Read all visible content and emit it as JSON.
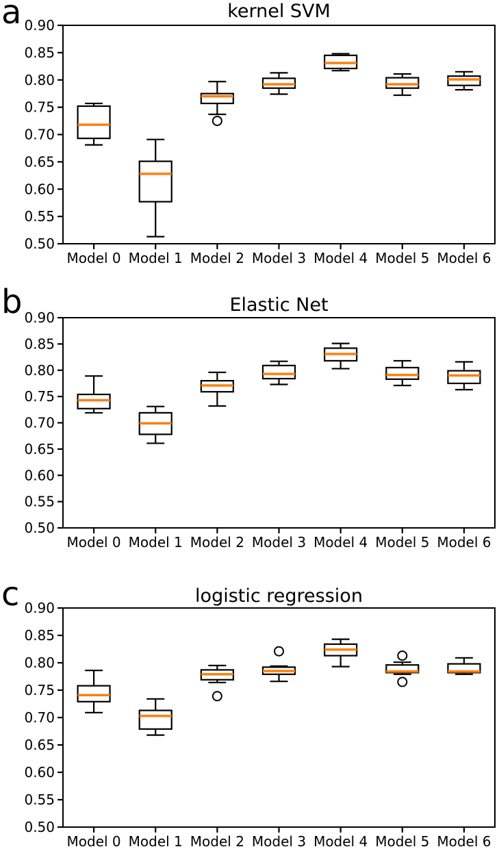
{
  "figure": {
    "panels": [
      {
        "letter": "a",
        "title": "kernel SVM"
      },
      {
        "letter": "b",
        "title": "Elastic Net"
      },
      {
        "letter": "c",
        "title": "logistic regression"
      }
    ]
  },
  "colors": {
    "median": "#ff7f0e",
    "box_stroke": "#000000",
    "background": "#ffffff"
  },
  "chart_data": [
    {
      "type": "boxplot",
      "panel_label": "a",
      "title": "kernel SVM",
      "categories": [
        "Model 0",
        "Model 1",
        "Model 2",
        "Model 3",
        "Model 4",
        "Model 5",
        "Model 6"
      ],
      "ylim": [
        0.5,
        0.9
      ],
      "yticks": [
        0.5,
        0.55,
        0.6,
        0.65,
        0.7,
        0.75,
        0.8,
        0.85,
        0.9
      ],
      "grid": false,
      "boxes": [
        {
          "whislo": 0.681,
          "q1": 0.693,
          "med": 0.718,
          "q3": 0.752,
          "whishi": 0.757,
          "fliers": []
        },
        {
          "whislo": 0.513,
          "q1": 0.577,
          "med": 0.628,
          "q3": 0.651,
          "whishi": 0.691,
          "fliers": []
        },
        {
          "whislo": 0.737,
          "q1": 0.757,
          "med": 0.77,
          "q3": 0.775,
          "whishi": 0.797,
          "fliers": [
            0.725
          ]
        },
        {
          "whislo": 0.774,
          "q1": 0.785,
          "med": 0.792,
          "q3": 0.803,
          "whishi": 0.813,
          "fliers": []
        },
        {
          "whislo": 0.817,
          "q1": 0.821,
          "med": 0.831,
          "q3": 0.845,
          "whishi": 0.848,
          "fliers": []
        },
        {
          "whislo": 0.772,
          "q1": 0.785,
          "med": 0.792,
          "q3": 0.804,
          "whishi": 0.811,
          "fliers": []
        },
        {
          "whislo": 0.782,
          "q1": 0.79,
          "med": 0.801,
          "q3": 0.807,
          "whishi": 0.815,
          "fliers": []
        }
      ]
    },
    {
      "type": "boxplot",
      "panel_label": "b",
      "title": "Elastic Net",
      "categories": [
        "Model 0",
        "Model 1",
        "Model 2",
        "Model 3",
        "Model 4",
        "Model 5",
        "Model 6"
      ],
      "ylim": [
        0.5,
        0.9
      ],
      "yticks": [
        0.5,
        0.55,
        0.6,
        0.65,
        0.7,
        0.75,
        0.8,
        0.85,
        0.9
      ],
      "grid": false,
      "boxes": [
        {
          "whislo": 0.719,
          "q1": 0.727,
          "med": 0.743,
          "q3": 0.754,
          "whishi": 0.789,
          "fliers": []
        },
        {
          "whislo": 0.661,
          "q1": 0.678,
          "med": 0.699,
          "q3": 0.719,
          "whishi": 0.731,
          "fliers": []
        },
        {
          "whislo": 0.732,
          "q1": 0.759,
          "med": 0.771,
          "q3": 0.78,
          "whishi": 0.796,
          "fliers": []
        },
        {
          "whislo": 0.773,
          "q1": 0.784,
          "med": 0.793,
          "q3": 0.809,
          "whishi": 0.817,
          "fliers": []
        },
        {
          "whislo": 0.803,
          "q1": 0.818,
          "med": 0.831,
          "q3": 0.842,
          "whishi": 0.851,
          "fliers": []
        },
        {
          "whislo": 0.771,
          "q1": 0.783,
          "med": 0.791,
          "q3": 0.805,
          "whishi": 0.818,
          "fliers": []
        },
        {
          "whislo": 0.763,
          "q1": 0.775,
          "med": 0.79,
          "q3": 0.799,
          "whishi": 0.816,
          "fliers": []
        }
      ]
    },
    {
      "type": "boxplot",
      "panel_label": "c",
      "title": "logistic regression",
      "categories": [
        "Model 0",
        "Model 1",
        "Model 2",
        "Model 3",
        "Model 4",
        "Model 5",
        "Model 6"
      ],
      "ylim": [
        0.5,
        0.9
      ],
      "yticks": [
        0.5,
        0.55,
        0.6,
        0.65,
        0.7,
        0.75,
        0.8,
        0.85,
        0.9
      ],
      "grid": false,
      "boxes": [
        {
          "whislo": 0.709,
          "q1": 0.729,
          "med": 0.741,
          "q3": 0.758,
          "whishi": 0.786,
          "fliers": []
        },
        {
          "whislo": 0.668,
          "q1": 0.679,
          "med": 0.703,
          "q3": 0.713,
          "whishi": 0.734,
          "fliers": []
        },
        {
          "whislo": 0.764,
          "q1": 0.769,
          "med": 0.779,
          "q3": 0.787,
          "whishi": 0.795,
          "fliers": [
            0.739
          ]
        },
        {
          "whislo": 0.766,
          "q1": 0.779,
          "med": 0.785,
          "q3": 0.792,
          "whishi": 0.794,
          "fliers": [
            0.821
          ]
        },
        {
          "whislo": 0.793,
          "q1": 0.813,
          "med": 0.824,
          "q3": 0.834,
          "whishi": 0.843,
          "fliers": []
        },
        {
          "whislo": 0.779,
          "q1": 0.782,
          "med": 0.784,
          "q3": 0.796,
          "whishi": 0.801,
          "fliers": [
            0.813,
            0.765
          ]
        },
        {
          "whislo": 0.779,
          "q1": 0.782,
          "med": 0.784,
          "q3": 0.798,
          "whishi": 0.809,
          "fliers": []
        }
      ]
    }
  ]
}
